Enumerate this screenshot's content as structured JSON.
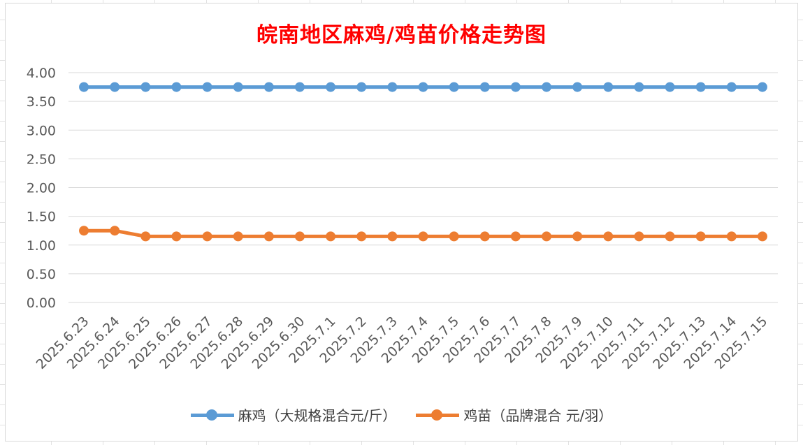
{
  "chart_data": {
    "type": "line",
    "title": "皖南地区麻鸡/鸡苗价格走势图",
    "categories": [
      "2025.6.23",
      "2025.6.24",
      "2025.6.25",
      "2025.6.26",
      "2025.6.27",
      "2025.6.28",
      "2025.6.29",
      "2025.6.30",
      "2025.7.1",
      "2025.7.2",
      "2025.7.3",
      "2025.7.4",
      "2025.7.5",
      "2025.7.6",
      "2025.7.7",
      "2025.7.8",
      "2025.7.9",
      "2025.7.10",
      "2025.7.11",
      "2025.7.12",
      "2025.7.13",
      "2025.7.14",
      "2025.7.15"
    ],
    "series": [
      {
        "name": "麻鸡（大规格混合元/斤）",
        "color": "#5b9bd5",
        "values": [
          3.75,
          3.75,
          3.75,
          3.75,
          3.75,
          3.75,
          3.75,
          3.75,
          3.75,
          3.75,
          3.75,
          3.75,
          3.75,
          3.75,
          3.75,
          3.75,
          3.75,
          3.75,
          3.75,
          3.75,
          3.75,
          3.75,
          3.75
        ]
      },
      {
        "name": "鸡苗（品牌混合 元/羽）",
        "color": "#ed7d31",
        "values": [
          1.25,
          1.25,
          1.15,
          1.15,
          1.15,
          1.15,
          1.15,
          1.15,
          1.15,
          1.15,
          1.15,
          1.15,
          1.15,
          1.15,
          1.15,
          1.15,
          1.15,
          1.15,
          1.15,
          1.15,
          1.15,
          1.15,
          1.15
        ]
      }
    ],
    "ylim": [
      0,
      4
    ],
    "yticks": [
      "0.00",
      "0.50",
      "1.00",
      "1.50",
      "2.00",
      "2.50",
      "3.00",
      "3.50",
      "4.00"
    ],
    "grid": true,
    "legend_position": "bottom",
    "title_color": "#ff0000"
  }
}
